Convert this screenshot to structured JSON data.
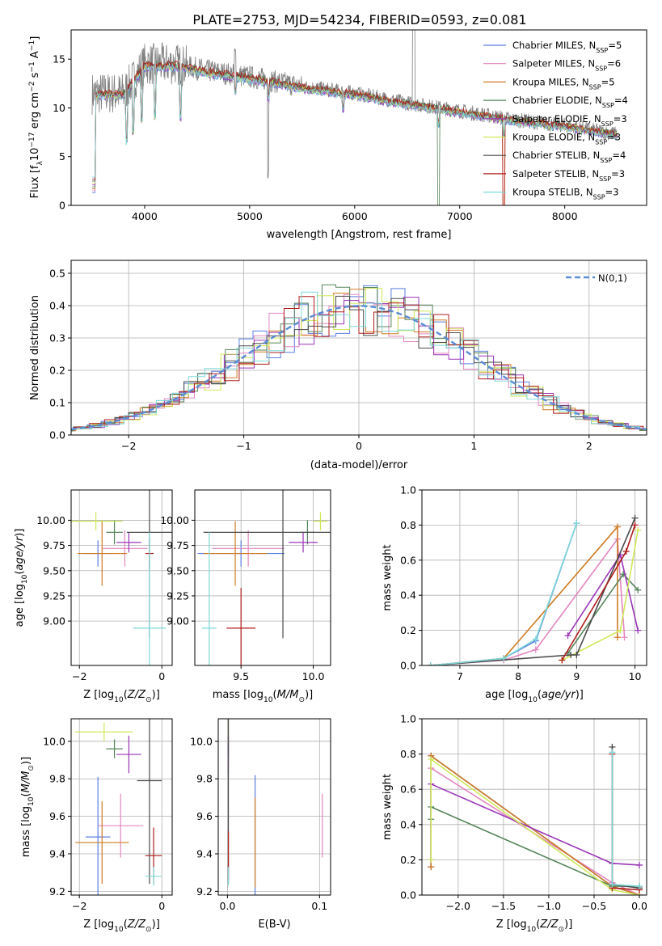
{
  "figure": {
    "title": "PLATE=2753, MJD=54234, FIBERID=0593, z=0.081"
  },
  "models": [
    {
      "name": "Chabrier MILES",
      "nssp": "5",
      "color": "#5b7fe0"
    },
    {
      "name": "Salpeter MILES",
      "nssp": "6",
      "color": "#e386c0"
    },
    {
      "name": "Kroupa MILES",
      "nssp": "5",
      "color": "#d07a22"
    },
    {
      "name": "Chabrier ELODIE",
      "nssp": "4",
      "color": "#55855a"
    },
    {
      "name": "Salpeter ELODIE",
      "nssp": "3",
      "color": "#9a35b8"
    },
    {
      "name": "Kroupa ELODIE",
      "nssp": "3",
      "color": "#cfe85a"
    },
    {
      "name": "Chabrier STELIB",
      "nssp": "4",
      "color": "#4a4a4a"
    },
    {
      "name": "Salpeter STELIB",
      "nssp": "3",
      "color": "#b01c1c"
    },
    {
      "name": "Kroupa STELIB",
      "nssp": "3",
      "color": "#7fd8d8"
    }
  ],
  "chart_data": [
    {
      "id": "spectrum",
      "type": "line",
      "xlabel": "wavelength [Angstrom, rest frame]",
      "ylabel": "Flux [f_λ10^-17 erg cm^-2 s^-1 A^-1]",
      "xlim": [
        3300,
        8780
      ],
      "ylim": [
        0,
        18
      ],
      "xticks": [
        4000,
        5000,
        6000,
        7000,
        8000
      ],
      "yticks": [
        0,
        5,
        10,
        15
      ],
      "legend": "top-right",
      "data_color": "#808080",
      "continuum": {
        "x": [
          3500,
          3800,
          4000,
          4300,
          4600,
          5000,
          5500,
          6000,
          6500,
          7000,
          7500,
          8000,
          8500
        ],
        "y": [
          11.5,
          11.5,
          14.5,
          14.5,
          13.8,
          13.2,
          12.2,
          11.5,
          10.5,
          9.7,
          8.8,
          8.2,
          7.3
        ]
      }
    },
    {
      "id": "residuals",
      "type": "line",
      "xlabel": "(data-model)/error",
      "ylabel": "Normed distribution",
      "xlim": [
        -2.5,
        2.5
      ],
      "ylim": [
        0,
        0.54
      ],
      "xticks": [
        -2,
        -1,
        0,
        1,
        2
      ],
      "yticks": [
        0.0,
        0.1,
        0.2,
        0.3,
        0.4,
        0.5
      ],
      "grid": true,
      "legend": "top-right",
      "reference": {
        "name": "N(0,1)",
        "mean": 0,
        "sd": 1,
        "color": "#5a8dd6"
      }
    },
    {
      "id": "age_vs_Z",
      "type": "scatter",
      "xlabel": "Z [log10(Z/Z⊙)]",
      "ylabel": "age  [log10(age/yr)]",
      "xlim": [
        -2.2,
        0.25
      ],
      "ylim": [
        8.56,
        10.3
      ],
      "xticks": [
        -2,
        0
      ],
      "yticks": [
        9.0,
        9.25,
        9.5,
        9.75,
        10.0
      ],
      "grid": true,
      "points": [
        {
          "x": -1.55,
          "y": 9.67,
          "dx": 0.3,
          "dy": 0.13
        },
        {
          "x": -0.9,
          "y": 9.72,
          "dx": 0.55,
          "dy": 0.18
        },
        {
          "x": -1.45,
          "y": 9.67,
          "dx": 0.6,
          "dy": 0.32
        },
        {
          "x": -1.15,
          "y": 9.88,
          "dx": 0.2,
          "dy": 0.12
        },
        {
          "x": -0.8,
          "y": 9.78,
          "dx": 0.3,
          "dy": 0.1
        },
        {
          "x": -1.6,
          "y": 9.99,
          "dx": 0.65,
          "dy": 0.09
        },
        {
          "x": -0.3,
          "y": 9.88,
          "dx": 0.55,
          "dy": 1.05
        },
        {
          "x": -0.3,
          "y": 9.67,
          "dx": 0.1,
          "dy": 0.15
        },
        {
          "x": -0.3,
          "y": 8.93,
          "dx": 0.4,
          "dy": 0.95
        }
      ]
    },
    {
      "id": "age_vs_mass",
      "type": "scatter",
      "xlabel": "mass [log10(M/M⊙)]",
      "ylabel": "",
      "xlim": [
        9.18,
        10.12
      ],
      "ylim": [
        8.56,
        10.3
      ],
      "xticks": [
        9.5,
        10.0
      ],
      "yticks": [
        9.0,
        9.25,
        9.5,
        9.75,
        10.0
      ],
      "grid": true,
      "points": [
        {
          "x": 9.5,
          "y": 9.67,
          "dx": 0.3,
          "dy": 0.13
        },
        {
          "x": 9.55,
          "y": 9.72,
          "dx": 0.25,
          "dy": 0.18
        },
        {
          "x": 9.46,
          "y": 9.67,
          "dx": 0.22,
          "dy": 0.32
        },
        {
          "x": 9.96,
          "y": 9.88,
          "dx": 0.05,
          "dy": 0.12
        },
        {
          "x": 9.93,
          "y": 9.78,
          "dx": 0.1,
          "dy": 0.1
        },
        {
          "x": 10.05,
          "y": 9.99,
          "dx": 0.05,
          "dy": 0.09
        },
        {
          "x": 9.79,
          "y": 9.88,
          "dx": 0.55,
          "dy": 1.05
        },
        {
          "x": 9.5,
          "y": 8.93,
          "dx": 0.1,
          "dy": 0.4
        },
        {
          "x": 9.28,
          "y": 8.93,
          "dx": 0.05,
          "dy": 0.95
        }
      ]
    },
    {
      "id": "weight_vs_age",
      "type": "line",
      "xlabel": "age  [log10(age/yr)]",
      "ylabel": "mass weight",
      "xlim": [
        6.35,
        10.2
      ],
      "ylim": [
        0,
        1.0
      ],
      "xticks": [
        7,
        8,
        9,
        10
      ],
      "yticks": [
        0.0,
        0.2,
        0.4,
        0.6,
        0.8,
        1.0
      ],
      "grid": true,
      "series": [
        {
          "x": [
            6.5,
            7.75,
            8.3,
            9.0
          ],
          "y": [
            0.0,
            0.04,
            0.14,
            0.81
          ]
        },
        {
          "x": [
            6.5,
            7.75,
            8.3,
            9.7,
            9.82
          ],
          "y": [
            0.0,
            0.03,
            0.09,
            0.72,
            0.16
          ]
        },
        {
          "x": [
            6.5,
            7.75,
            9.7,
            9.7
          ],
          "y": [
            0.0,
            0.04,
            0.79,
            0.16
          ]
        },
        {
          "x": [
            8.85,
            9.8,
            10.05
          ],
          "y": [
            0.07,
            0.52,
            0.43
          ]
        },
        {
          "x": [
            8.85,
            9.75,
            10.05
          ],
          "y": [
            0.17,
            0.63,
            0.2
          ]
        },
        {
          "x": [
            8.75,
            9.75,
            10.05
          ],
          "y": [
            0.03,
            0.2,
            0.77
          ]
        },
        {
          "x": [
            6.5,
            8.9,
            9.0,
            10.0
          ],
          "y": [
            0.0,
            0.06,
            0.06,
            0.84
          ]
        },
        {
          "x": [
            8.75,
            9.85,
            10.0
          ],
          "y": [
            0.03,
            0.65,
            0.8
          ]
        },
        {
          "x": [
            6.5,
            7.75,
            8.3,
            9.0
          ],
          "y": [
            0.0,
            0.04,
            0.15,
            0.81
          ]
        }
      ]
    },
    {
      "id": "mass_vs_Z",
      "type": "scatter",
      "xlabel": "Z [log10(Z/Z⊙)]",
      "ylabel": "mass [log10(M/M⊙)]",
      "xlim": [
        -2.2,
        0.25
      ],
      "ylim": [
        9.18,
        10.12
      ],
      "xticks": [
        -2,
        0
      ],
      "yticks": [
        9.2,
        9.4,
        9.6,
        9.8,
        10.0
      ],
      "grid": true,
      "points": [
        {
          "x": -1.55,
          "y": 9.49,
          "dx": 0.3,
          "dy": 0.32
        },
        {
          "x": -1.0,
          "y": 9.55,
          "dx": 0.55,
          "dy": 0.17
        },
        {
          "x": -1.45,
          "y": 9.46,
          "dx": 0.65,
          "dy": 0.22
        },
        {
          "x": -1.15,
          "y": 9.96,
          "dx": 0.2,
          "dy": 0.05
        },
        {
          "x": -0.8,
          "y": 9.93,
          "dx": 0.3,
          "dy": 0.1
        },
        {
          "x": -1.4,
          "y": 10.05,
          "dx": 0.7,
          "dy": 0.05
        },
        {
          "x": -0.3,
          "y": 9.79,
          "dx": 0.3,
          "dy": 0.55
        },
        {
          "x": -0.2,
          "y": 9.39,
          "dx": 0.2,
          "dy": 0.15
        },
        {
          "x": -0.2,
          "y": 9.28,
          "dx": 0.2,
          "dy": 0.05
        }
      ]
    },
    {
      "id": "mass_vs_ebv",
      "type": "scatter",
      "xlabel": "E(B-V)",
      "ylabel": "",
      "xlim": [
        -0.01,
        0.112
      ],
      "ylim": [
        9.18,
        10.12
      ],
      "xticks": [
        0.0,
        0.1
      ],
      "yticks": [
        9.2,
        9.4,
        9.6,
        9.8,
        10.0
      ],
      "grid": true,
      "points": [
        {
          "x": 0.03,
          "y": 9.5,
          "dx": 0.0,
          "dy": 0.32
        },
        {
          "x": 0.103,
          "y": 9.55,
          "dx": 0.0,
          "dy": 0.17
        },
        {
          "x": 0.03,
          "y": 9.46,
          "dx": 0.0,
          "dy": 0.24
        },
        {
          "x": 0.001,
          "y": 9.96,
          "dx": 0.0,
          "dy": 0.05
        },
        {
          "x": 0.001,
          "y": 9.93,
          "dx": 0.0,
          "dy": 0.1
        },
        {
          "x": 0.001,
          "y": 10.05,
          "dx": 0.0,
          "dy": 0.05
        },
        {
          "x": 0.001,
          "y": 9.79,
          "dx": 0.0,
          "dy": 0.55
        },
        {
          "x": 0.001,
          "y": 9.39,
          "dx": 0.0,
          "dy": 0.13
        },
        {
          "x": 0.001,
          "y": 9.28,
          "dx": 0.0,
          "dy": 0.05
        }
      ]
    },
    {
      "id": "weight_vs_Z",
      "type": "line",
      "xlabel": "Z [log10(Z/Z⊙)]",
      "ylabel": "mass weight",
      "xlim": [
        -2.4,
        0.08
      ],
      "ylim": [
        0,
        1.0
      ],
      "xticks": [
        -2.0,
        -1.5,
        -1.0,
        -0.5,
        0.0
      ],
      "yticks": [
        0.0,
        0.2,
        0.4,
        0.6,
        0.8,
        1.0
      ],
      "grid": true,
      "series": [
        {
          "x": [
            -2.3,
            -2.3,
            -0.3,
            0.0
          ],
          "y": [
            0.16,
            0.79,
            0.05,
            0.0
          ]
        },
        {
          "x": [
            -2.3,
            -2.3,
            -0.3,
            0.0
          ],
          "y": [
            0.16,
            0.72,
            0.07,
            0.0
          ]
        },
        {
          "x": [
            -2.3,
            -2.3,
            -0.3,
            0.0
          ],
          "y": [
            0.16,
            0.79,
            0.05,
            0.0
          ]
        },
        {
          "x": [
            -2.3,
            -2.3,
            -0.3,
            0.0
          ],
          "y": [
            0.43,
            0.5,
            0.05,
            0.05
          ]
        },
        {
          "x": [
            -2.3,
            -2.3,
            -0.3,
            0.0
          ],
          "y": [
            0.2,
            0.63,
            0.18,
            0.17
          ]
        },
        {
          "x": [
            -2.3,
            -2.3,
            -0.3,
            0.0
          ],
          "y": [
            0.2,
            0.77,
            0.03,
            0.0
          ]
        },
        {
          "x": [
            -0.3,
            -0.3,
            0.0
          ],
          "y": [
            0.84,
            0.06,
            0.04
          ]
        },
        {
          "x": [
            -0.3,
            -0.3,
            0.0
          ],
          "y": [
            0.8,
            0.04,
            0.03
          ]
        },
        {
          "x": [
            -0.3,
            -0.3,
            0.0
          ],
          "y": [
            0.81,
            0.06,
            0.05
          ]
        }
      ]
    }
  ]
}
